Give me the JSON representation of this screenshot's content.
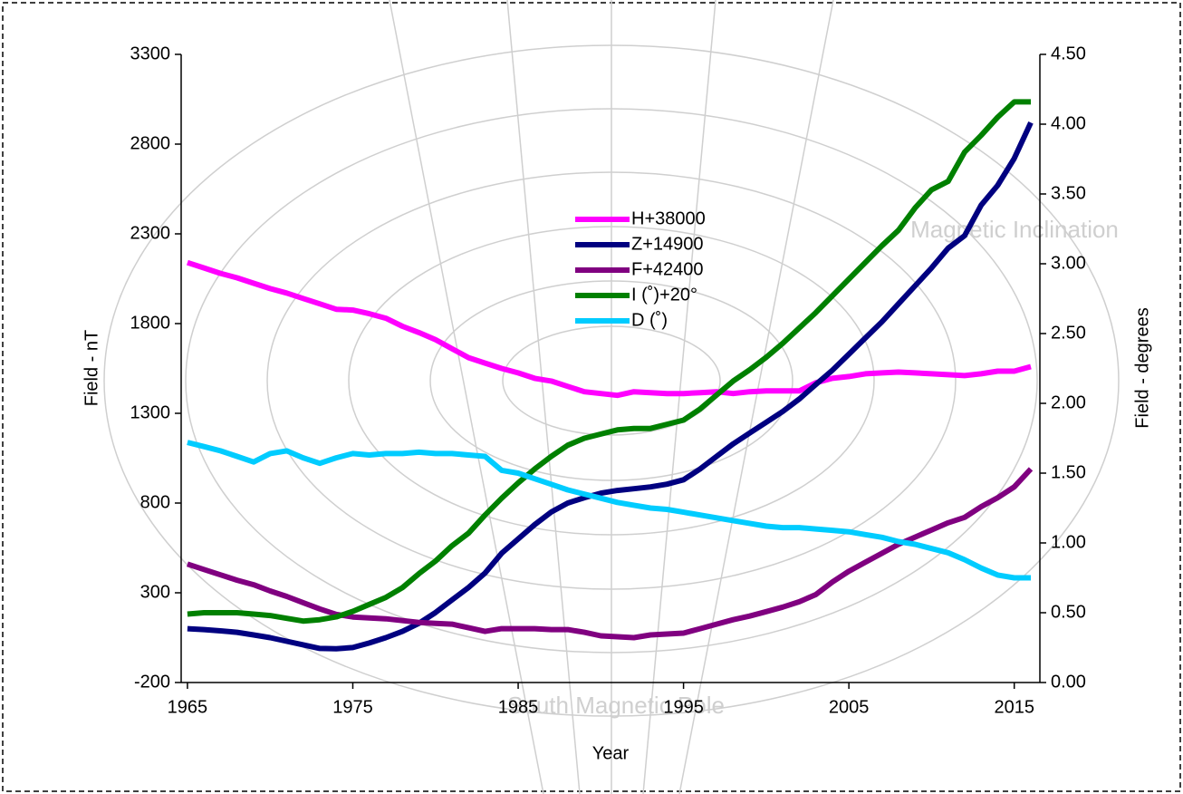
{
  "chart_data": {
    "type": "line",
    "xlabel": "Year",
    "ylabel": "Field - nT",
    "y2label": "Field - degrees",
    "annotations": [
      "Magnetic Inclination",
      "South Magnetic Pole"
    ],
    "legend": "upper center",
    "grid": false,
    "x": [
      1965,
      1966,
      1967,
      1968,
      1969,
      1970,
      1971,
      1972,
      1973,
      1974,
      1975,
      1976,
      1977,
      1978,
      1979,
      1980,
      1981,
      1982,
      1983,
      1984,
      1985,
      1986,
      1987,
      1988,
      1989,
      1990,
      1991,
      1992,
      1993,
      1994,
      1995,
      1996,
      1997,
      1998,
      1999,
      2000,
      2001,
      2002,
      2003,
      2004,
      2005,
      2006,
      2007,
      2008,
      2009,
      2010,
      2011,
      2012,
      2013,
      2014,
      2015,
      2016
    ],
    "xlim": [
      1964.62,
      2016.55
    ],
    "xticks": [
      1965,
      1975,
      1985,
      1995,
      2005,
      2015
    ],
    "ylim": [
      -200,
      3300
    ],
    "yticks": [
      -200,
      300,
      800,
      1300,
      1800,
      2300,
      2800,
      3300
    ],
    "y2lim": [
      0,
      4.5
    ],
    "y2ticks": [
      {
        "value": 0,
        "label": "0.00"
      },
      {
        "value": 0.5,
        "label": "0.50"
      },
      {
        "value": 1,
        "label": "1.00"
      },
      {
        "value": 1.5,
        "label": "1.50"
      },
      {
        "value": 2,
        "label": "2.00"
      },
      {
        "value": 2.5,
        "label": "2.50"
      },
      {
        "value": 3,
        "label": "3.00"
      },
      {
        "value": 3.5,
        "label": "3.50"
      },
      {
        "value": 4,
        "label": "4.00"
      },
      {
        "value": 4.5,
        "label": "4.50"
      }
    ],
    "series": [
      {
        "name": "H+38000",
        "color": "#ff00ff",
        "values": [
          2140,
          2110,
          2080,
          2055,
          2025,
          1995,
          1970,
          1940,
          1910,
          1880,
          1875,
          1855,
          1830,
          1785,
          1750,
          1710,
          1660,
          1610,
          1580,
          1550,
          1525,
          1495,
          1480,
          1450,
          1420,
          1410,
          1400,
          1420,
          1415,
          1410,
          1410,
          1415,
          1420,
          1410,
          1420,
          1425,
          1425,
          1425,
          1470,
          1495,
          1505,
          1520,
          1525,
          1530,
          1525,
          1520,
          1515,
          1510,
          1520,
          1535,
          1535,
          1560
        ]
      },
      {
        "name": "Z+14900",
        "color": "#000080",
        "values": [
          100,
          95,
          88,
          80,
          65,
          50,
          30,
          10,
          -10,
          -12,
          -5,
          20,
          50,
          85,
          130,
          190,
          260,
          330,
          410,
          520,
          600,
          680,
          750,
          800,
          830,
          855,
          870,
          880,
          890,
          905,
          930,
          990,
          1060,
          1130,
          1190,
          1250,
          1310,
          1380,
          1460,
          1540,
          1630,
          1720,
          1810,
          1910,
          2010,
          2110,
          2220,
          2290,
          2460,
          2570,
          2720,
          2920
        ]
      },
      {
        "name": "F+42400",
        "color": "#800080",
        "values": [
          460,
          430,
          400,
          370,
          345,
          310,
          280,
          245,
          210,
          180,
          165,
          160,
          155,
          145,
          135,
          130,
          125,
          105,
          85,
          100,
          100,
          100,
          95,
          95,
          80,
          60,
          55,
          50,
          65,
          70,
          75,
          100,
          125,
          150,
          170,
          195,
          220,
          250,
          290,
          360,
          420,
          470,
          520,
          570,
          610,
          650,
          690,
          720,
          780,
          830,
          890,
          990
        ]
      },
      {
        "name": "I (˚)+20°",
        "color": "#008000",
        "axis": "y2",
        "values": [
          0.49,
          0.5,
          0.5,
          0.5,
          0.49,
          0.48,
          0.46,
          0.44,
          0.45,
          0.47,
          0.51,
          0.56,
          0.61,
          0.68,
          0.78,
          0.87,
          0.98,
          1.07,
          1.2,
          1.32,
          1.43,
          1.53,
          1.62,
          1.7,
          1.75,
          1.78,
          1.81,
          1.82,
          1.82,
          1.85,
          1.88,
          1.96,
          2.06,
          2.16,
          2.24,
          2.33,
          2.43,
          2.54,
          2.65,
          2.77,
          2.89,
          3.01,
          3.13,
          3.24,
          3.4,
          3.53,
          3.59,
          3.8,
          3.92,
          4.05,
          4.16,
          4.16
        ]
      },
      {
        "name": "D (˚)",
        "color": "#00ccff",
        "axis": "y2",
        "values": [
          1.72,
          1.69,
          1.66,
          1.62,
          1.58,
          1.64,
          1.66,
          1.61,
          1.57,
          1.61,
          1.64,
          1.63,
          1.64,
          1.64,
          1.65,
          1.64,
          1.64,
          1.63,
          1.62,
          1.52,
          1.5,
          1.46,
          1.42,
          1.38,
          1.35,
          1.32,
          1.29,
          1.27,
          1.25,
          1.24,
          1.22,
          1.2,
          1.18,
          1.16,
          1.14,
          1.12,
          1.11,
          1.11,
          1.1,
          1.09,
          1.08,
          1.06,
          1.04,
          1.01,
          0.99,
          0.96,
          0.93,
          0.88,
          0.82,
          0.77,
          0.75,
          0.75
        ]
      }
    ]
  }
}
